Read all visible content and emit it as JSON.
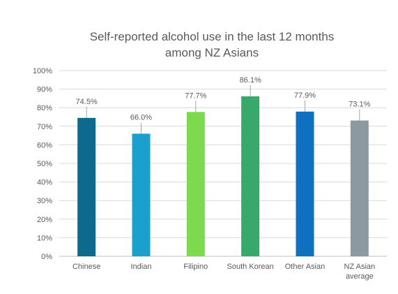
{
  "chart_data": {
    "type": "bar",
    "title_lines": [
      "Self-reported alcohol use in the last 12 months",
      "among NZ Asians"
    ],
    "categories": [
      [
        "Chinese"
      ],
      [
        "Indian"
      ],
      [
        "Filipino"
      ],
      [
        "South Korean"
      ],
      [
        "Other Asian"
      ],
      [
        "NZ Asian",
        "average"
      ]
    ],
    "values": [
      74.5,
      66.0,
      77.7,
      86.1,
      77.9,
      73.1
    ],
    "data_labels": [
      "74.5%",
      "66.0%",
      "77.7%",
      "86.1%",
      "77.9%",
      "73.1%"
    ],
    "colors": [
      "#0e6a8c",
      "#1aa0cc",
      "#7dd94e",
      "#39a86b",
      "#1070c0",
      "#8a9a9e"
    ],
    "ylim": [
      0,
      100
    ],
    "yticks": [
      0,
      10,
      20,
      30,
      40,
      50,
      60,
      70,
      80,
      90,
      100
    ],
    "ytick_labels": [
      "0%",
      "10%",
      "20%",
      "30%",
      "40%",
      "50%",
      "60%",
      "70%",
      "80%",
      "90%",
      "100%"
    ],
    "grid": true,
    "legend": "none"
  }
}
